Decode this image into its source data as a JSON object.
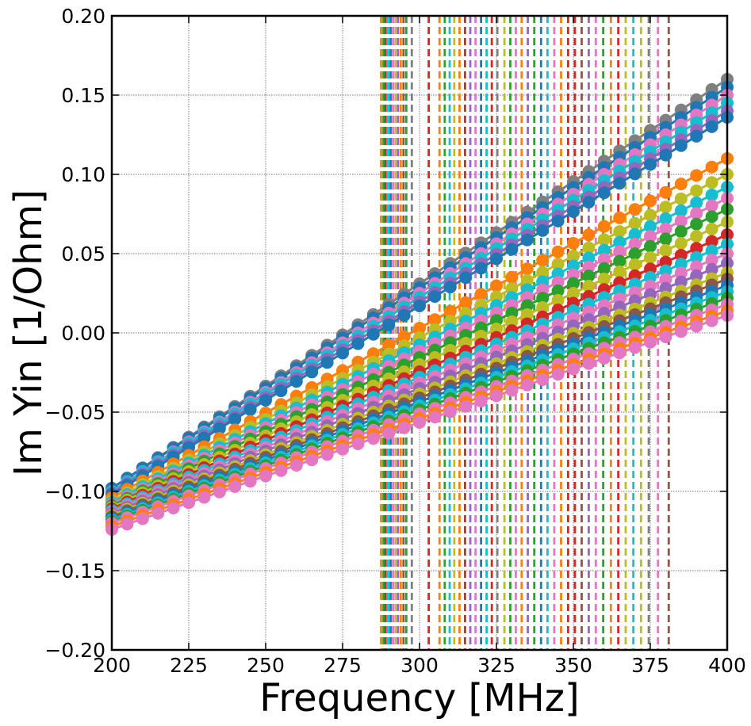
{
  "chart_data": {
    "type": "scatter",
    "xlabel": "Frequency [MHz]",
    "ylabel": "Im Yin [1/Ohm]",
    "xlim": [
      200,
      400
    ],
    "ylim": [
      -0.2,
      0.2
    ],
    "x_ticks": [
      "200",
      "225",
      "250",
      "275",
      "300",
      "325",
      "350",
      "375",
      "400"
    ],
    "y_ticks": [
      "−0.20",
      "−0.15",
      "−0.10",
      "−0.05",
      "0.00",
      "0.05",
      "0.10",
      "0.15",
      "0.20"
    ],
    "grid": true,
    "legend": "none",
    "x_sample_step": 5,
    "palette": [
      "#1f77b4",
      "#ff7f0e",
      "#2ca02c",
      "#d62728",
      "#9467bd",
      "#8c564b",
      "#e377c2",
      "#7f7f7f",
      "#bcbd22",
      "#17becf"
    ],
    "series": [
      {
        "y_at_200": -0.098,
        "y_at_400": 0.16,
        "color": "#7f7f7f"
      },
      {
        "y_at_200": -0.098,
        "y_at_400": 0.155,
        "color": "#1f77b4"
      },
      {
        "y_at_200": -0.1,
        "y_at_400": 0.15,
        "color": "#e377c2"
      },
      {
        "y_at_200": -0.1,
        "y_at_400": 0.145,
        "color": "#17becf"
      },
      {
        "y_at_200": -0.101,
        "y_at_400": 0.14,
        "color": "#9467bd"
      },
      {
        "y_at_200": -0.102,
        "y_at_400": 0.136,
        "color": "#1f77b4"
      },
      {
        "y_at_200": -0.104,
        "y_at_400": 0.11,
        "color": "#ff7f0e"
      },
      {
        "y_at_200": -0.106,
        "y_at_400": 0.1,
        "color": "#bcbd22"
      },
      {
        "y_at_200": -0.107,
        "y_at_400": 0.092,
        "color": "#17becf"
      },
      {
        "y_at_200": -0.108,
        "y_at_400": 0.085,
        "color": "#e377c2"
      },
      {
        "y_at_200": -0.109,
        "y_at_400": 0.078,
        "color": "#2ca02c"
      },
      {
        "y_at_200": -0.11,
        "y_at_400": 0.07,
        "color": "#bcbd22"
      },
      {
        "y_at_200": -0.111,
        "y_at_400": 0.062,
        "color": "#d62728"
      },
      {
        "y_at_200": -0.112,
        "y_at_400": 0.056,
        "color": "#17becf"
      },
      {
        "y_at_200": -0.113,
        "y_at_400": 0.05,
        "color": "#e377c2"
      },
      {
        "y_at_200": -0.114,
        "y_at_400": 0.044,
        "color": "#9467bd"
      },
      {
        "y_at_200": -0.115,
        "y_at_400": 0.038,
        "color": "#bcbd22"
      },
      {
        "y_at_200": -0.116,
        "y_at_400": 0.034,
        "color": "#8c564b"
      },
      {
        "y_at_200": -0.117,
        "y_at_400": 0.03,
        "color": "#1f77b4"
      },
      {
        "y_at_200": -0.118,
        "y_at_400": 0.026,
        "color": "#17becf"
      },
      {
        "y_at_200": -0.119,
        "y_at_400": 0.022,
        "color": "#2ca02c"
      },
      {
        "y_at_200": -0.12,
        "y_at_400": 0.018,
        "color": "#e377c2"
      },
      {
        "y_at_200": -0.122,
        "y_at_400": 0.014,
        "color": "#ff7f0e"
      },
      {
        "y_at_200": -0.124,
        "y_at_400": 0.011,
        "color": "#e377c2"
      }
    ],
    "vlines": [
      {
        "x": 287.5,
        "color": "#ff7f0e"
      },
      {
        "x": 288.3,
        "color": "#2ca02c"
      },
      {
        "x": 289.0,
        "color": "#d62728"
      },
      {
        "x": 289.8,
        "color": "#17becf"
      },
      {
        "x": 290.6,
        "color": "#1f77b4"
      },
      {
        "x": 291.4,
        "color": "#e377c2"
      },
      {
        "x": 292.2,
        "color": "#bcbd22"
      },
      {
        "x": 293.0,
        "color": "#9467bd"
      },
      {
        "x": 293.9,
        "color": "#ff7f0e"
      },
      {
        "x": 294.8,
        "color": "#8c564b"
      },
      {
        "x": 295.7,
        "color": "#2ca02c"
      },
      {
        "x": 297.5,
        "color": "#7f7f7f"
      },
      {
        "x": 303.0,
        "color": "#d62728"
      },
      {
        "x": 306.5,
        "color": "#ff7f0e"
      },
      {
        "x": 308.2,
        "color": "#2ca02c"
      },
      {
        "x": 309.8,
        "color": "#17becf"
      },
      {
        "x": 311.3,
        "color": "#bcbd22"
      },
      {
        "x": 313.0,
        "color": "#ff7f0e"
      },
      {
        "x": 314.8,
        "color": "#d62728"
      },
      {
        "x": 316.5,
        "color": "#9467bd"
      },
      {
        "x": 318.2,
        "color": "#e377c2"
      },
      {
        "x": 320.0,
        "color": "#1f77b4"
      },
      {
        "x": 321.8,
        "color": "#17becf"
      },
      {
        "x": 323.5,
        "color": "#d62728"
      },
      {
        "x": 325.3,
        "color": "#7f7f7f"
      },
      {
        "x": 327.6,
        "color": "#bcbd22"
      },
      {
        "x": 329.5,
        "color": "#2ca02c"
      },
      {
        "x": 331.3,
        "color": "#e377c2"
      },
      {
        "x": 333.2,
        "color": "#ff7f0e"
      },
      {
        "x": 335.2,
        "color": "#9467bd"
      },
      {
        "x": 337.3,
        "color": "#2ca02c"
      },
      {
        "x": 339.5,
        "color": "#1f77b4"
      },
      {
        "x": 341.6,
        "color": "#17becf"
      },
      {
        "x": 343.8,
        "color": "#e377c2"
      },
      {
        "x": 346.0,
        "color": "#ff7f0e"
      },
      {
        "x": 348.3,
        "color": "#d62728"
      },
      {
        "x": 350.5,
        "color": "#d62728"
      },
      {
        "x": 352.7,
        "color": "#8c564b"
      },
      {
        "x": 355.0,
        "color": "#9467bd"
      },
      {
        "x": 357.3,
        "color": "#e377c2"
      },
      {
        "x": 359.7,
        "color": "#2ca02c"
      },
      {
        "x": 362.2,
        "color": "#ff7f0e"
      },
      {
        "x": 364.6,
        "color": "#d62728"
      },
      {
        "x": 367.0,
        "color": "#bcbd22"
      },
      {
        "x": 369.5,
        "color": "#17becf"
      },
      {
        "x": 372.0,
        "color": "#bcbd22"
      },
      {
        "x": 374.5,
        "color": "#7f7f7f"
      },
      {
        "x": 377.5,
        "color": "#e377c2"
      },
      {
        "x": 381.0,
        "color": "#8c564b"
      }
    ]
  }
}
